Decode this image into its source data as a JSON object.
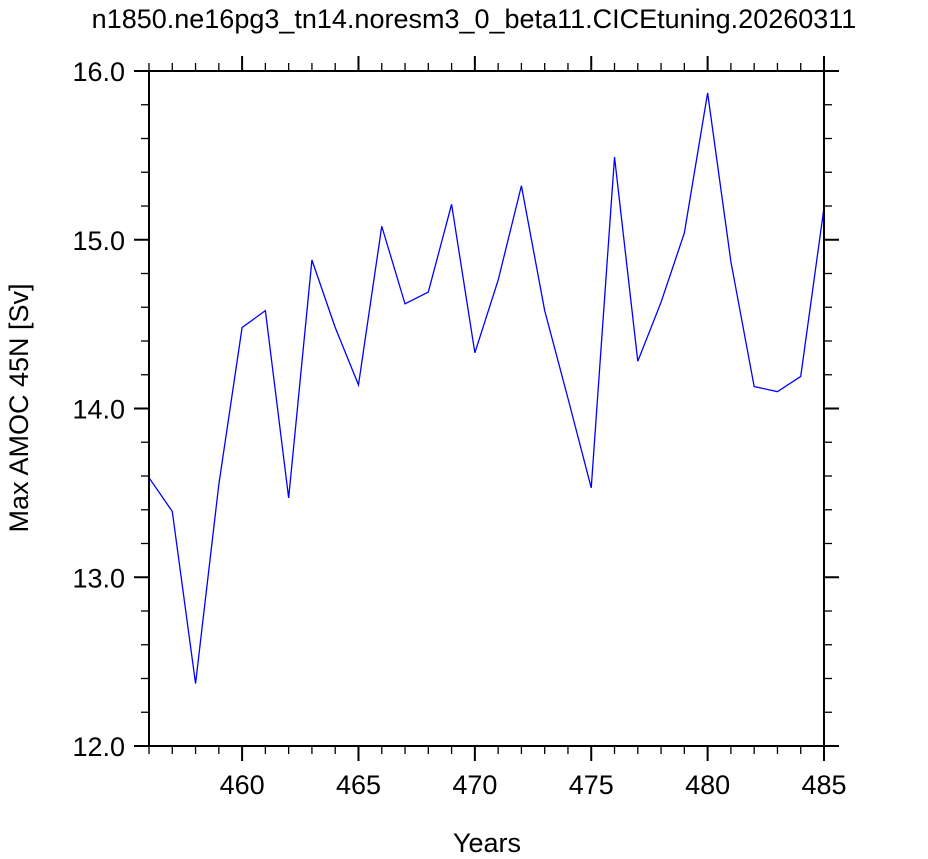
{
  "chart_data": {
    "type": "line",
    "title": "n1850.ne16pg3_tn14.noresm3_0_beta11.CICEtuning.20260311",
    "xlabel": "Years",
    "ylabel": "Max AMOC 45N [Sv]",
    "xlim": [
      456,
      485
    ],
    "ylim": [
      12.0,
      16.0
    ],
    "x_ticks": [
      "460",
      "465",
      "470",
      "475",
      "480",
      "485"
    ],
    "y_ticks": [
      "12.0",
      "13.0",
      "14.0",
      "15.0",
      "16.0"
    ],
    "grid": false,
    "legend": "none",
    "series": [
      {
        "color": "#0000ff",
        "x": [
          456,
          457,
          458,
          459,
          460,
          461,
          462,
          463,
          464,
          465,
          466,
          467,
          468,
          469,
          470,
          471,
          472,
          473,
          474,
          475,
          476,
          477,
          478,
          479,
          480,
          481,
          482,
          483,
          484,
          485
        ],
        "y": [
          13.59,
          13.39,
          12.37,
          13.55,
          14.48,
          14.58,
          13.47,
          14.88,
          14.48,
          14.14,
          15.08,
          14.62,
          14.69,
          15.21,
          14.33,
          14.76,
          15.32,
          14.58,
          14.06,
          13.53,
          15.49,
          14.28,
          14.63,
          15.04,
          15.87,
          14.87,
          14.13,
          14.1,
          14.19,
          15.19
        ]
      }
    ]
  }
}
